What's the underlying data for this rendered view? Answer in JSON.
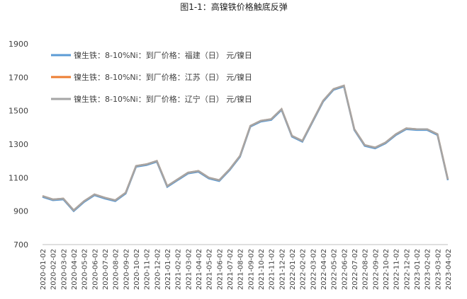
{
  "chart_data": {
    "type": "line",
    "title": "图1-1：高镍铁价格触底反弹",
    "categories": [
      "2020-01-02",
      "2020-02-02",
      "2020-03-02",
      "2020-04-02",
      "2020-05-02",
      "2020-06-02",
      "2020-07-02",
      "2020-08-02",
      "2020-09-02",
      "2020-10-02",
      "2020-11-02",
      "2020-12-02",
      "2021-01-02",
      "2021-02-02",
      "2021-03-02",
      "2021-04-02",
      "2021-05-02",
      "2021-06-02",
      "2021-07-02",
      "2021-08-02",
      "2021-09-02",
      "2021-10-02",
      "2021-11-02",
      "2021-12-02",
      "2022-01-02",
      "2022-02-02",
      "2022-03-02",
      "2022-04-02",
      "2022-05-02",
      "2022-06-02",
      "2022-07-02",
      "2022-08-02",
      "2022-09-02",
      "2022-10-02",
      "2022-11-02",
      "2022-12-02",
      "2023-01-02",
      "2023-02-02",
      "2023-03-02",
      "2023-04-02"
    ],
    "series": [
      {
        "name": "镍生铁：8-10%Ni：到厂价格：福建（日） 元/镍日",
        "color": "#5b9bd5",
        "values": [
          985,
          965,
          970,
          900,
          955,
          995,
          975,
          960,
          1005,
          1165,
          1175,
          1195,
          1045,
          1085,
          1125,
          1135,
          1095,
          1080,
          1145,
          1225,
          1405,
          1435,
          1445,
          1505,
          1345,
          1315,
          1435,
          1555,
          1625,
          1645,
          1385,
          1290,
          1275,
          1305,
          1355,
          1390,
          1385,
          1385,
          1355,
          1085
        ]
      },
      {
        "name": "镍生铁：8-10%Ni：到厂价格：江苏（日） 元/镍日",
        "color": "#ed7d31",
        "values": [
          990,
          970,
          975,
          905,
          960,
          1000,
          980,
          965,
          1010,
          1170,
          1180,
          1200,
          1050,
          1090,
          1130,
          1140,
          1100,
          1085,
          1150,
          1230,
          1410,
          1440,
          1450,
          1510,
          1350,
          1320,
          1440,
          1560,
          1630,
          1650,
          1390,
          1295,
          1280,
          1310,
          1360,
          1395,
          1390,
          1390,
          1360,
          1090
        ]
      },
      {
        "name": "镍生铁：8-10%Ni：到厂价格：辽宁（日） 元/镍日",
        "color": "#a5a5a5",
        "values": [
          990,
          970,
          975,
          905,
          960,
          1000,
          980,
          965,
          1010,
          1170,
          1180,
          1200,
          1050,
          1090,
          1130,
          1140,
          1100,
          1085,
          1150,
          1230,
          1410,
          1440,
          1450,
          1510,
          1350,
          1320,
          1440,
          1560,
          1630,
          1650,
          1390,
          1295,
          1280,
          1310,
          1360,
          1395,
          1390,
          1390,
          1360,
          1090
        ]
      }
    ],
    "ylim": [
      700,
      1900
    ],
    "yticks": [
      700,
      900,
      1100,
      1300,
      1500,
      1700,
      1900
    ],
    "legend": "upper left"
  }
}
